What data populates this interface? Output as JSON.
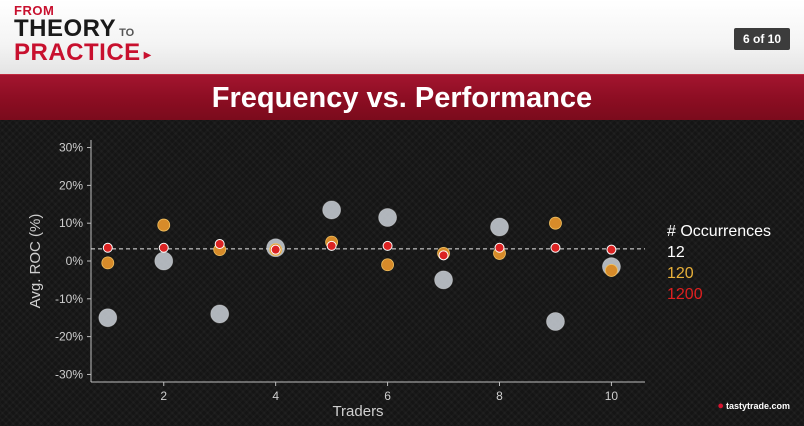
{
  "header": {
    "logo": {
      "from": "FROM",
      "theory": "THEORY",
      "to": "TO",
      "practice": "PRACTICE"
    },
    "counter": "6 of 10"
  },
  "slide_title": "Frequency vs. Performance",
  "legend": {
    "title": "# Occurrences",
    "items": [
      {
        "label": "12",
        "color": "#ffffff"
      },
      {
        "label": "120",
        "color": "#e8b03a"
      },
      {
        "label": "1200",
        "color": "#e02020"
      }
    ]
  },
  "brand": "tastytrade.com",
  "chart_data": {
    "type": "scatter",
    "xlabel": "Traders",
    "ylabel": "Avg. ROC (%)",
    "xlim": [
      0.7,
      10.6
    ],
    "ylim": [
      -32,
      32
    ],
    "x_ticks": [
      2,
      4,
      6,
      8,
      10
    ],
    "y_ticks": [
      30,
      20,
      10,
      0,
      -10,
      -20,
      -30
    ],
    "y_tick_labels": [
      "30%",
      "20%",
      "10%",
      "0%",
      "-10%",
      "-20%",
      "-30%"
    ],
    "reference_line": {
      "y": 3.2,
      "style": "dashed"
    },
    "grid": false,
    "legend_position": "right",
    "series": [
      {
        "name": "12",
        "color": "#c6ccd3",
        "x": [
          1,
          2,
          3,
          4,
          5,
          6,
          7,
          8,
          9,
          10
        ],
        "y": [
          -15,
          0,
          -14,
          3.5,
          13.5,
          11.5,
          -5,
          9,
          -16,
          -1.5
        ]
      },
      {
        "name": "120",
        "color": "#d78b2a",
        "x": [
          1,
          2,
          3,
          4,
          5,
          6,
          7,
          8,
          9,
          10
        ],
        "y": [
          -0.5,
          9.5,
          3,
          3,
          5,
          -1,
          2,
          2,
          10,
          -2.5
        ]
      },
      {
        "name": "1200",
        "color": "#dc2323",
        "x": [
          1,
          2,
          3,
          4,
          5,
          6,
          7,
          8,
          9,
          10
        ],
        "y": [
          3.5,
          3.5,
          4.5,
          3,
          4,
          4,
          1.5,
          3.5,
          3.5,
          3
        ]
      }
    ]
  }
}
